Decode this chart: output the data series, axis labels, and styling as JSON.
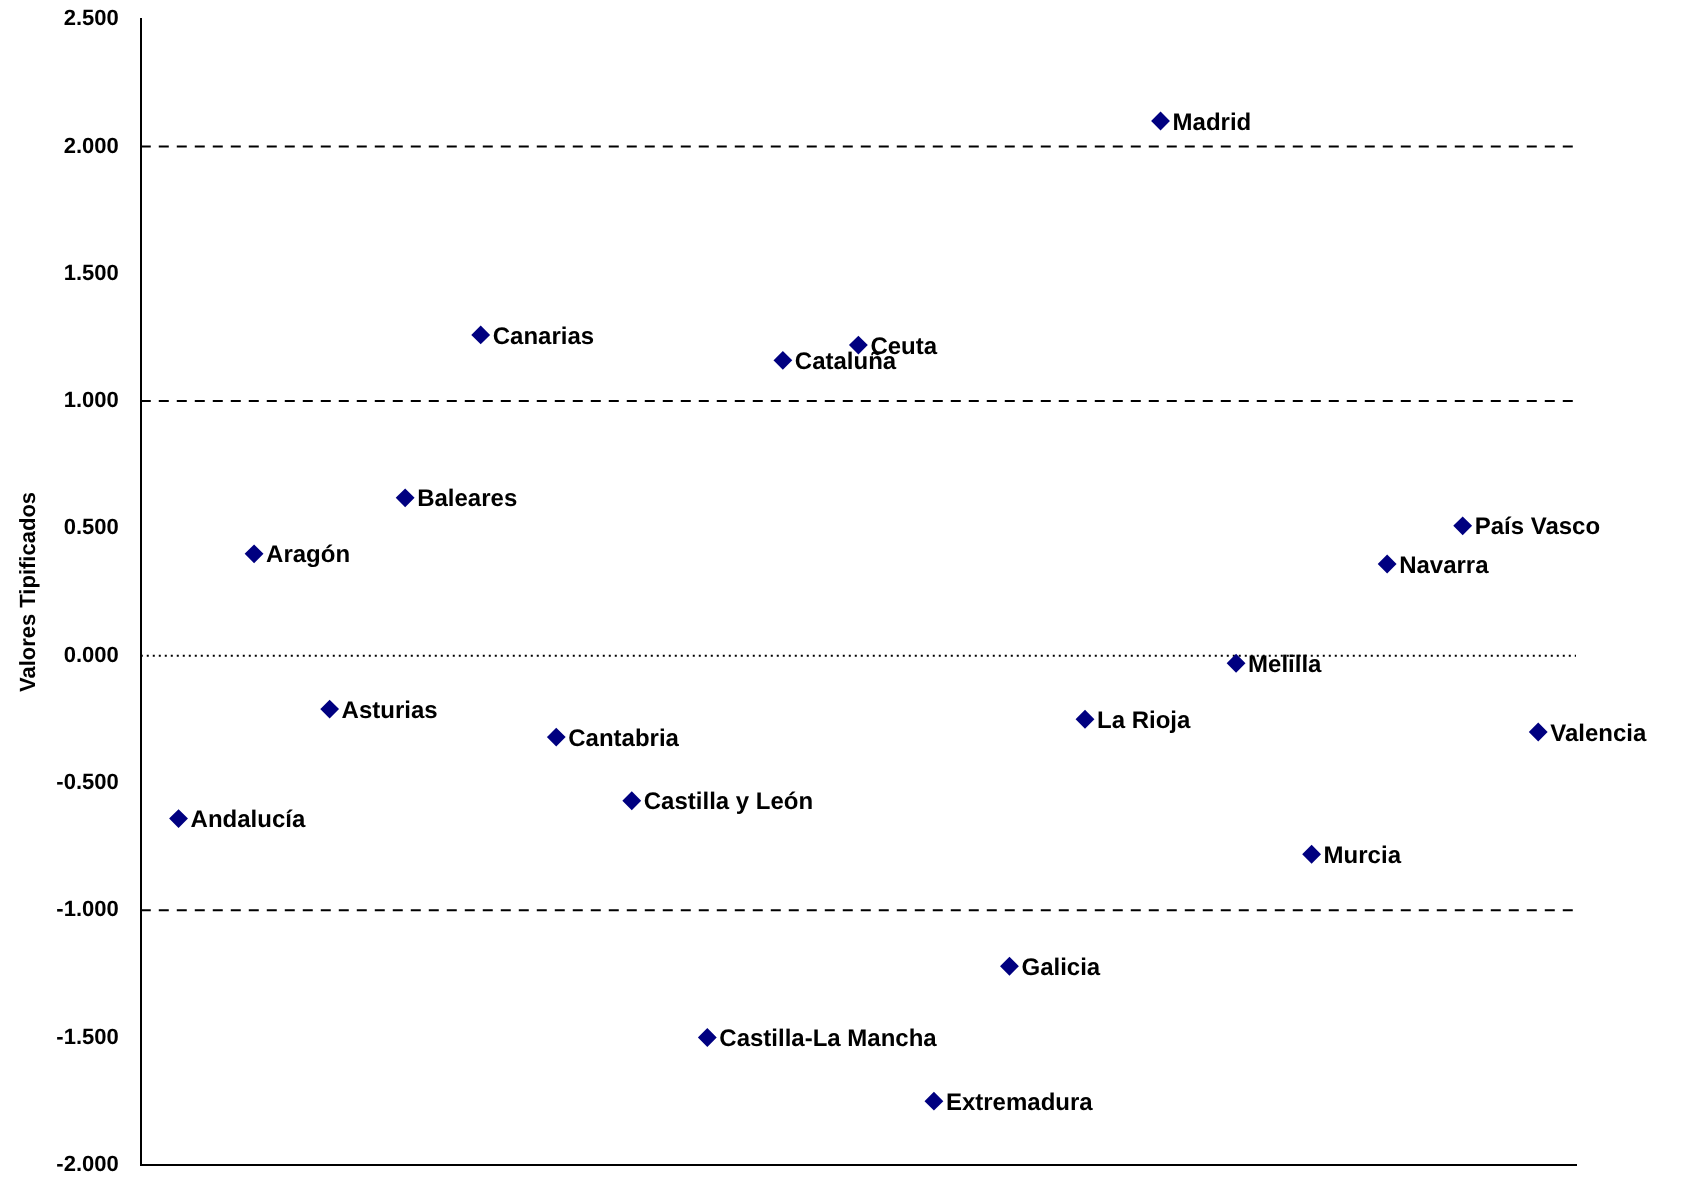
{
  "chart_data": {
    "type": "scatter",
    "ylabel": "Valores Tipificados",
    "categories": [
      null,
      null,
      null,
      null,
      null,
      null,
      null,
      null,
      null,
      null,
      null,
      null,
      null,
      null,
      null,
      null,
      null,
      null,
      null
    ],
    "series": [
      {
        "name": "Andalucía",
        "color": "#000080",
        "values": [
          -0.64,
          null,
          null,
          null,
          null,
          null,
          null,
          null,
          null,
          null,
          null,
          null,
          null,
          null,
          null,
          null,
          null,
          null,
          null
        ]
      },
      {
        "name": "Aragón",
        "color": "#000080",
        "values": [
          null,
          0.4,
          null,
          null,
          null,
          null,
          null,
          null,
          null,
          null,
          null,
          null,
          null,
          null,
          null,
          null,
          null,
          null,
          null
        ]
      },
      {
        "name": "Asturias",
        "color": "#000080",
        "values": [
          null,
          null,
          -0.21,
          null,
          null,
          null,
          null,
          null,
          null,
          null,
          null,
          null,
          null,
          null,
          null,
          null,
          null,
          null,
          null
        ]
      },
      {
        "name": "Baleares",
        "color": "#000080",
        "values": [
          null,
          null,
          null,
          0.62,
          null,
          null,
          null,
          null,
          null,
          null,
          null,
          null,
          null,
          null,
          null,
          null,
          null,
          null,
          null
        ]
      },
      {
        "name": "Canarias",
        "color": "#000080",
        "values": [
          null,
          null,
          null,
          null,
          1.26,
          null,
          null,
          null,
          null,
          null,
          null,
          null,
          null,
          null,
          null,
          null,
          null,
          null,
          null
        ]
      },
      {
        "name": "Cantabria",
        "color": "#000080",
        "values": [
          null,
          null,
          null,
          null,
          null,
          -0.32,
          null,
          null,
          null,
          null,
          null,
          null,
          null,
          null,
          null,
          null,
          null,
          null,
          null
        ]
      },
      {
        "name": "Castilla y León",
        "color": "#000080",
        "values": [
          null,
          null,
          null,
          null,
          null,
          null,
          -0.57,
          null,
          null,
          null,
          null,
          null,
          null,
          null,
          null,
          null,
          null,
          null,
          null
        ]
      },
      {
        "name": "Castilla-La Mancha",
        "color": "#000080",
        "values": [
          null,
          null,
          null,
          null,
          null,
          null,
          null,
          -1.5,
          null,
          null,
          null,
          null,
          null,
          null,
          null,
          null,
          null,
          null,
          null
        ]
      },
      {
        "name": "Cataluña",
        "color": "#000080",
        "values": [
          null,
          null,
          null,
          null,
          null,
          null,
          null,
          null,
          1.16,
          null,
          null,
          null,
          null,
          null,
          null,
          null,
          null,
          null,
          null
        ]
      },
      {
        "name": "Ceuta",
        "color": "#000080",
        "values": [
          null,
          null,
          null,
          null,
          null,
          null,
          null,
          null,
          null,
          1.22,
          null,
          null,
          null,
          null,
          null,
          null,
          null,
          null,
          null
        ]
      },
      {
        "name": "Extremadura",
        "color": "#000080",
        "values": [
          null,
          null,
          null,
          null,
          null,
          null,
          null,
          null,
          null,
          null,
          -1.75,
          null,
          null,
          null,
          null,
          null,
          null,
          null,
          null
        ]
      },
      {
        "name": "Galicia",
        "color": "#000080",
        "values": [
          null,
          null,
          null,
          null,
          null,
          null,
          null,
          null,
          null,
          null,
          null,
          -1.22,
          null,
          null,
          null,
          null,
          null,
          null,
          null
        ]
      },
      {
        "name": "La Rioja",
        "color": "#000080",
        "values": [
          null,
          null,
          null,
          null,
          null,
          null,
          null,
          null,
          null,
          null,
          null,
          null,
          -0.25,
          null,
          null,
          null,
          null,
          null,
          null
        ]
      },
      {
        "name": "Madrid",
        "color": "#000080",
        "values": [
          null,
          null,
          null,
          null,
          null,
          null,
          null,
          null,
          null,
          null,
          null,
          null,
          null,
          2.1,
          null,
          null,
          null,
          null,
          null
        ]
      },
      {
        "name": "Melilla",
        "color": "#000080",
        "values": [
          null,
          null,
          null,
          null,
          null,
          null,
          null,
          null,
          null,
          null,
          null,
          null,
          null,
          null,
          -0.03,
          null,
          null,
          null,
          null
        ]
      },
      {
        "name": "Murcia",
        "color": "#000080",
        "values": [
          null,
          null,
          null,
          null,
          null,
          null,
          null,
          null,
          null,
          null,
          null,
          null,
          null,
          null,
          null,
          -0.78,
          null,
          null,
          null
        ]
      },
      {
        "name": "Navarra",
        "color": "#000080",
        "values": [
          null,
          null,
          null,
          null,
          null,
          null,
          null,
          null,
          null,
          null,
          null,
          null,
          null,
          null,
          null,
          null,
          0.36,
          null,
          null
        ]
      },
      {
        "name": "País Vasco",
        "color": "#000080",
        "values": [
          null,
          null,
          null,
          null,
          null,
          null,
          null,
          null,
          null,
          null,
          null,
          null,
          null,
          null,
          null,
          null,
          null,
          0.51,
          null
        ]
      },
      {
        "name": "Valencia",
        "color": "#000080",
        "values": [
          null,
          null,
          null,
          null,
          null,
          null,
          null,
          null,
          null,
          null,
          null,
          null,
          null,
          null,
          null,
          null,
          null,
          null,
          -0.3
        ]
      }
    ],
    "ylim": [
      -2,
      2.5
    ],
    "yticks": [
      {
        "value": -2,
        "label": "-2.000"
      },
      {
        "value": -1.5,
        "label": "-1.500"
      },
      {
        "value": -1,
        "label": "-1.000"
      },
      {
        "value": -0.5,
        "label": "-0.500"
      },
      {
        "value": 0,
        "label": "0.000"
      },
      {
        "value": 0.5,
        "label": "0.500"
      },
      {
        "value": 1,
        "label": "1.000"
      },
      {
        "value": 1.5,
        "label": "1.500"
      },
      {
        "value": 2,
        "label": "2.000"
      },
      {
        "value": 2.5,
        "label": "2.500"
      }
    ],
    "ref_lines": [
      {
        "axis": "y",
        "value": -1,
        "line_style": "dashed",
        "color": "#000000"
      },
      {
        "axis": "y",
        "value": 0,
        "line_style": "dotted",
        "color": "#000000"
      },
      {
        "axis": "y",
        "value": 1,
        "line_style": "dashed",
        "color": "#000000"
      },
      {
        "axis": "y",
        "value": 2,
        "line_style": "dashed",
        "color": "#000000"
      }
    ],
    "grid": false,
    "legend": false,
    "tick_labels": "y",
    "marker": "diamond"
  }
}
